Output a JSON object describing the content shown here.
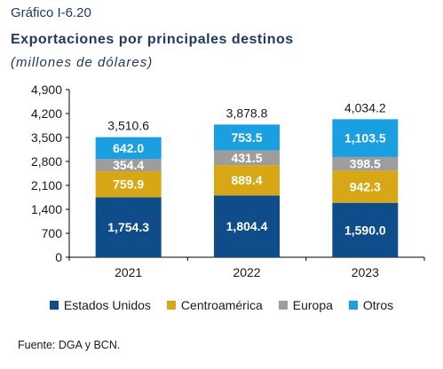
{
  "header": {
    "figure_label": "Gráfico I-6.20",
    "title": "Exportaciones por principales destinos",
    "subtitle": "(millones de dólares)"
  },
  "footer": {
    "source": "Fuente: DGA y BCN."
  },
  "chart_data": {
    "type": "bar",
    "stacked": true,
    "categories": [
      "2021",
      "2022",
      "2023"
    ],
    "series": [
      {
        "name": "Estados Unidos",
        "color": "#0e4c8a",
        "values": [
          1754.3,
          1804.4,
          1590.0
        ],
        "labels": [
          "1,754.3",
          "1,804.4",
          "1,590.0"
        ]
      },
      {
        "name": "Centroamérica",
        "color": "#d7a716",
        "values": [
          759.9,
          889.4,
          942.3
        ],
        "labels": [
          "759.9",
          "889.4",
          "942.3"
        ]
      },
      {
        "name": "Europa",
        "color": "#9d9d9d",
        "values": [
          354.4,
          431.5,
          398.5
        ],
        "labels": [
          "354.4",
          "431.5",
          "398.5"
        ]
      },
      {
        "name": "Otros",
        "color": "#1a9fe0",
        "values": [
          642.0,
          753.5,
          1103.5
        ],
        "labels": [
          "642.0",
          "753.5",
          "1,103.5"
        ]
      }
    ],
    "totals": [
      3510.6,
      3878.8,
      4034.2
    ],
    "total_labels": [
      "3,510.6",
      "3,878.8",
      "4,034.2"
    ],
    "y_ticks": [
      0,
      700,
      1400,
      2100,
      2800,
      3500,
      4200,
      4900
    ],
    "y_tick_labels": [
      "0",
      "700",
      "1,400",
      "2,100",
      "2,800",
      "3,500",
      "4,200",
      "4,900"
    ],
    "ylim": [
      0,
      4900
    ],
    "grid": false,
    "legend_position": "bottom"
  }
}
